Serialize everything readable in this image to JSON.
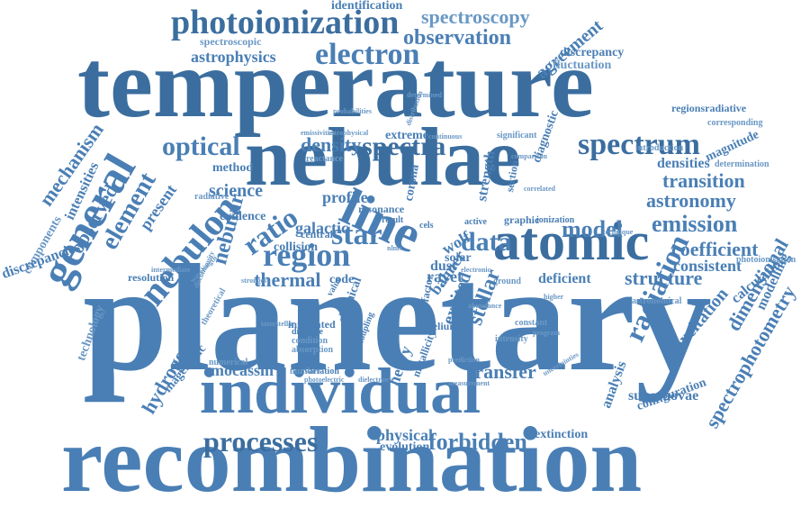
{
  "title": "",
  "palette": {
    "primary": "#4a7fb5",
    "dark": "#3b6e9f",
    "light": "#6a98c5"
  },
  "words": [
    "planetary",
    "recombination",
    "temperature",
    "nebulae",
    "individual",
    "atomic",
    "line",
    "general",
    "photoionization",
    "electron",
    "spectroscopy",
    "observation",
    "identification",
    "astrophysics",
    "spectroscopic",
    "agreement",
    "discrepancy",
    "fluctuation",
    "optical",
    "density",
    "spectra",
    "spectrum",
    "nebulon",
    "region",
    "ratio",
    "star",
    "data",
    "model",
    "emission",
    "astronomy",
    "transition",
    "densities",
    "magnitude",
    "determination",
    "coefficient",
    "consistent",
    "structure",
    "calculation",
    "element",
    "mechanism",
    "observed",
    "intensities",
    "components",
    "discrepancies",
    "present",
    "science",
    "method",
    "radiative",
    "evidence",
    "galactic",
    "collision",
    "central",
    "thermal",
    "resolution",
    "nebular",
    "code",
    "dust",
    "rayet",
    "wolf",
    "balmer",
    "solar",
    "deficient",
    "ground",
    "helium",
    "constant",
    "intensity",
    "stellar",
    "excited",
    "chemical",
    "radiation",
    "excitation",
    "analysis",
    "supernovae",
    "configuration",
    "spectrophotometry",
    "dimensional",
    "modelling",
    "technology",
    "hydrogen",
    "magellanic",
    "mocassin",
    "transfer",
    "processes",
    "forbidden",
    "physical",
    "evolution",
    "extinction",
    "astronomical",
    "photoionisation",
    "regionsradiative",
    "corresponding",
    "diagnostic",
    "introduction",
    "probabilities",
    "determined",
    "distribution",
    "extreme",
    "continuous",
    "significant",
    "emissivities",
    "astrophysical",
    "reactance",
    "profile",
    "corona",
    "strength",
    "section",
    "correlated",
    "active",
    "graphic",
    "ionization",
    "technique",
    "cels",
    "result",
    "nlms",
    "theoretical",
    "distance",
    "condition",
    "absorption",
    "numerical",
    "strongest",
    "intermediate",
    "wavelength",
    "discontinuity",
    "variation",
    "number",
    "photoelectric",
    "dielectronic",
    "metallicity",
    "heavy",
    "prediction",
    "measurement",
    "uncertainties",
    "program",
    "interstellar",
    "integrated",
    "coupling",
    "resonance",
    "factor",
    "value",
    "higher",
    "comparison",
    "electronic",
    "abundance",
    "ratios"
  ]
}
